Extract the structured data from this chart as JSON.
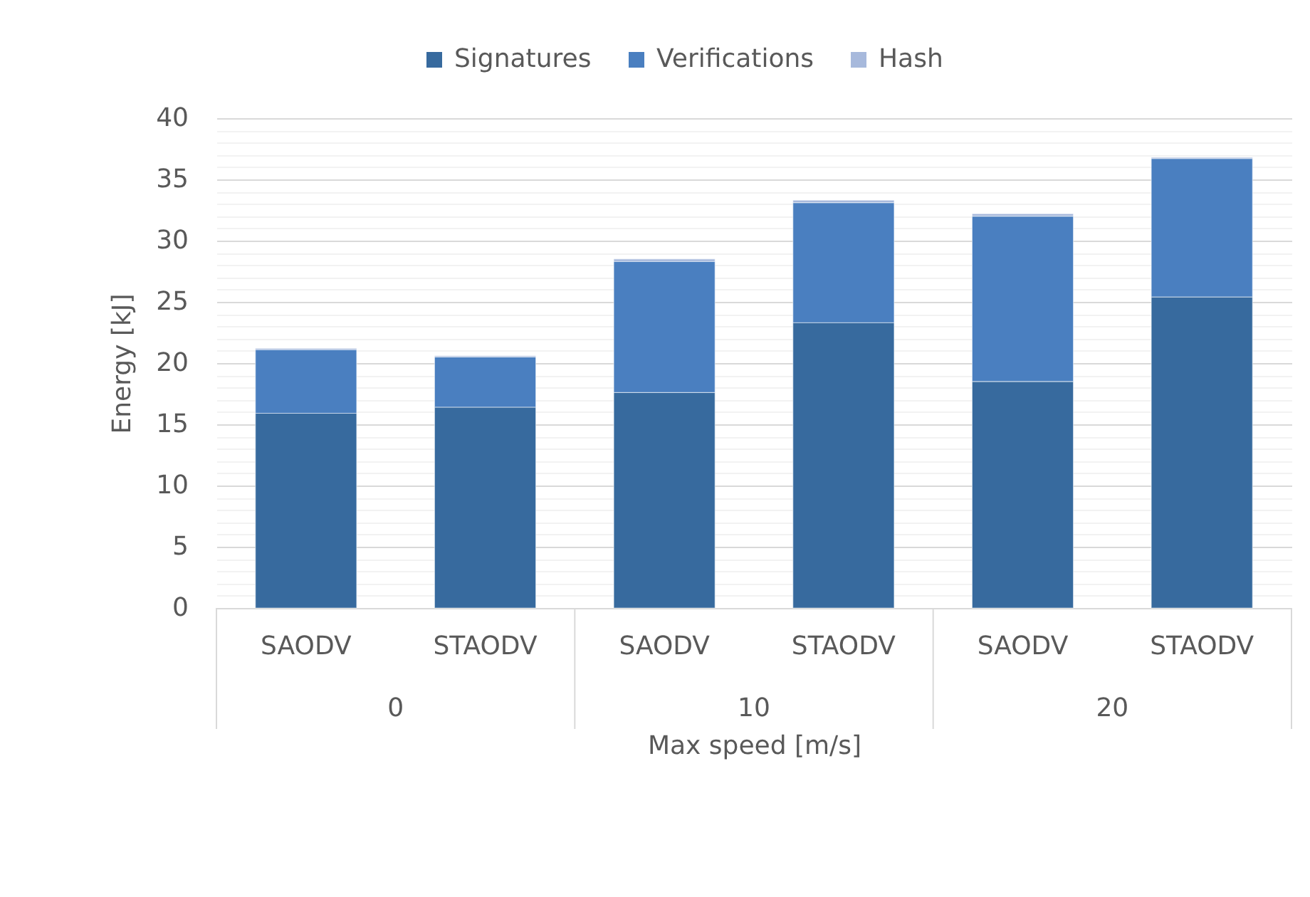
{
  "chart_data": {
    "type": "bar",
    "stacked": true,
    "categories": [
      "SAODV",
      "STAODV",
      "SAODV",
      "STAODV",
      "SAODV",
      "STAODV"
    ],
    "annotations": [
      "0",
      "10",
      "20"
    ],
    "xlabel": "Max speed [m/s]",
    "ylabel": "Energy [kJ]",
    "series": [
      {
        "name": "Signatures",
        "color": "#376a9e",
        "values": [
          15.9,
          16.4,
          17.6,
          23.3,
          18.5,
          25.4
        ]
      },
      {
        "name": "Verifications",
        "color": "#4a7fc0",
        "values": [
          5.2,
          4.1,
          10.7,
          9.8,
          13.5,
          11.3
        ]
      },
      {
        "name": "Hash",
        "color": "#a7b9dc",
        "values": [
          0.1,
          0.1,
          0.2,
          0.2,
          0.2,
          0.1
        ]
      }
    ],
    "ylim": [
      0,
      40
    ],
    "yticks": [
      0,
      {
        "value": 1,
        "label": null
      },
      {
        "value": 2,
        "label": null
      },
      {
        "value": 3,
        "label": null
      },
      {
        "value": 4,
        "label": null
      },
      5,
      {
        "value": 6,
        "label": null
      },
      {
        "value": 7,
        "label": null
      },
      {
        "value": 8,
        "label": null
      },
      {
        "value": 9,
        "label": null
      },
      10,
      {
        "value": 11,
        "label": null
      },
      {
        "value": 12,
        "label": null
      },
      {
        "value": 13,
        "label": null
      },
      {
        "value": 14,
        "label": null
      },
      15,
      {
        "value": 16,
        "label": null
      },
      {
        "value": 17,
        "label": null
      },
      {
        "value": 18,
        "label": null
      },
      {
        "value": 19,
        "label": null
      },
      20,
      {
        "value": 21,
        "label": null
      },
      {
        "value": 22,
        "label": null
      },
      {
        "value": 23,
        "label": null
      },
      {
        "value": 24,
        "label": null
      },
      25,
      {
        "value": 26,
        "label": null
      },
      {
        "value": 27,
        "label": null
      },
      {
        "value": 28,
        "label": null
      },
      {
        "value": 29,
        "label": null
      },
      30,
      {
        "value": 31,
        "label": null
      },
      {
        "value": 32,
        "label": null
      },
      {
        "value": 33,
        "label": null
      },
      {
        "value": 34,
        "label": null
      },
      35,
      {
        "value": 36,
        "label": null
      },
      {
        "value": 37,
        "label": null
      },
      {
        "value": 38,
        "label": null
      },
      {
        "value": 39,
        "label": null
      },
      40
    ],
    "grid": "y",
    "legend": "top"
  }
}
